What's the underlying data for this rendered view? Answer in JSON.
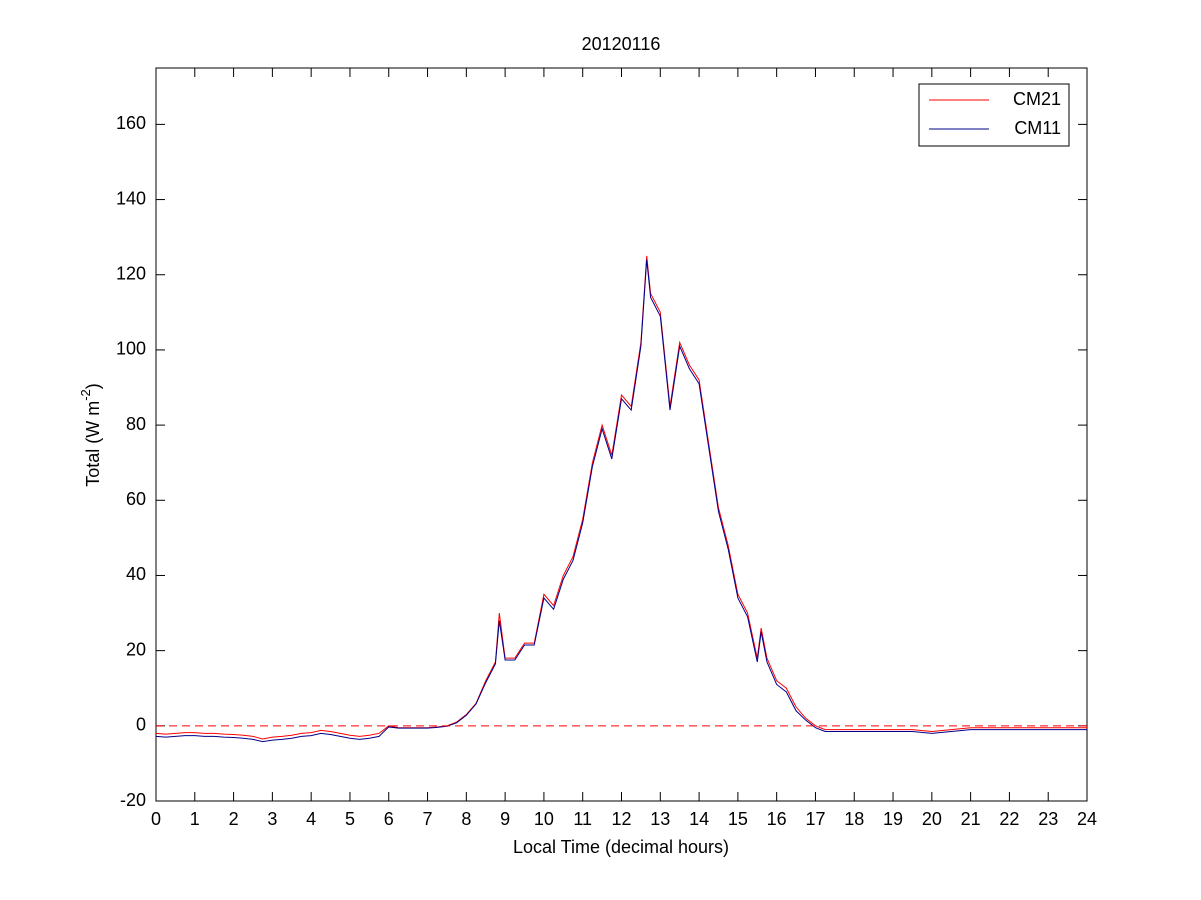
{
  "chart_data": {
    "type": "line",
    "title": "20120116",
    "xlabel": "Local Time (decimal hours)",
    "ylabel": "Total (W m",
    "ylabel_superscript": "-2",
    "ylabel_suffix": ")",
    "xlim": [
      0,
      24
    ],
    "xticks": [
      0,
      1,
      2,
      3,
      4,
      5,
      6,
      7,
      8,
      9,
      10,
      11,
      12,
      13,
      14,
      15,
      16,
      17,
      18,
      19,
      20,
      21,
      22,
      23,
      24
    ],
    "ylim": [
      -20,
      175
    ],
    "yticks": [
      -20,
      0,
      20,
      40,
      60,
      80,
      100,
      120,
      140,
      160
    ],
    "reference_line": {
      "value": 0,
      "color": "#ff0000"
    },
    "legend": "upper right",
    "x": [
      0,
      0.25,
      0.5,
      0.75,
      1,
      1.25,
      1.5,
      1.75,
      2,
      2.25,
      2.5,
      2.75,
      3,
      3.25,
      3.5,
      3.75,
      4,
      4.25,
      4.5,
      4.75,
      5,
      5.25,
      5.5,
      5.75,
      6,
      6.25,
      6.5,
      6.75,
      7,
      7.25,
      7.5,
      7.75,
      8,
      8.25,
      8.5,
      8.75,
      8.85,
      9,
      9.25,
      9.5,
      9.75,
      10,
      10.25,
      10.5,
      10.75,
      11,
      11.25,
      11.5,
      11.75,
      12,
      12.25,
      12.5,
      12.65,
      12.75,
      13,
      13.25,
      13.5,
      13.75,
      14,
      14.25,
      14.5,
      14.75,
      15,
      15.25,
      15.5,
      15.6,
      15.75,
      16,
      16.25,
      16.5,
      16.75,
      17,
      17.25,
      17.5,
      18,
      18.5,
      19,
      19.5,
      20,
      20.5,
      21,
      21.5,
      22,
      22.5,
      23,
      23.5,
      24
    ],
    "series": [
      {
        "name": "CM21",
        "color": "#ff0000",
        "values": [
          -2,
          -2.2,
          -2,
          -1.8,
          -1.8,
          -2,
          -2,
          -2.2,
          -2.3,
          -2.5,
          -2.8,
          -3.5,
          -3,
          -2.8,
          -2.5,
          -2,
          -1.8,
          -1.2,
          -1.5,
          -2,
          -2.5,
          -2.8,
          -2.5,
          -2,
          0,
          -0.5,
          -0.5,
          -0.5,
          -0.5,
          -0.3,
          0,
          1,
          3,
          6,
          12,
          17,
          30,
          18,
          18,
          22,
          22,
          35,
          32,
          40,
          45,
          55,
          70,
          80,
          72,
          88,
          85,
          102,
          125,
          115,
          110,
          85,
          102,
          96,
          92,
          75,
          58,
          48,
          35,
          30,
          18,
          26,
          18,
          12,
          10,
          5,
          2,
          0,
          -1,
          -1,
          -1,
          -1,
          -1,
          -1,
          -1.5,
          -1,
          -0.5,
          -0.5,
          -0.5,
          -0.5,
          -0.5,
          -0.5,
          -0.5
        ]
      },
      {
        "name": "CM11",
        "color": "#00008b",
        "values": [
          -2.8,
          -3,
          -2.8,
          -2.6,
          -2.6,
          -2.8,
          -2.8,
          -3,
          -3.1,
          -3.3,
          -3.6,
          -4.2,
          -3.8,
          -3.6,
          -3.3,
          -2.8,
          -2.6,
          -2,
          -2.3,
          -2.8,
          -3.3,
          -3.6,
          -3.3,
          -2.8,
          -0.3,
          -0.6,
          -0.6,
          -0.6,
          -0.6,
          -0.4,
          -0.1,
          0.8,
          2.8,
          5.8,
          11.5,
          16.5,
          28,
          17.5,
          17.5,
          21.5,
          21.5,
          34,
          31,
          39,
          44,
          54,
          69,
          79,
          71,
          87,
          84,
          101,
          124,
          114,
          109,
          84,
          101,
          95,
          91,
          74,
          57,
          47,
          34,
          29,
          17,
          25,
          17,
          11,
          9,
          4,
          1.5,
          -0.5,
          -1.5,
          -1.5,
          -1.5,
          -1.5,
          -1.5,
          -1.5,
          -2,
          -1.5,
          -1,
          -1,
          -1,
          -1,
          -1,
          -1,
          -1
        ]
      }
    ]
  }
}
